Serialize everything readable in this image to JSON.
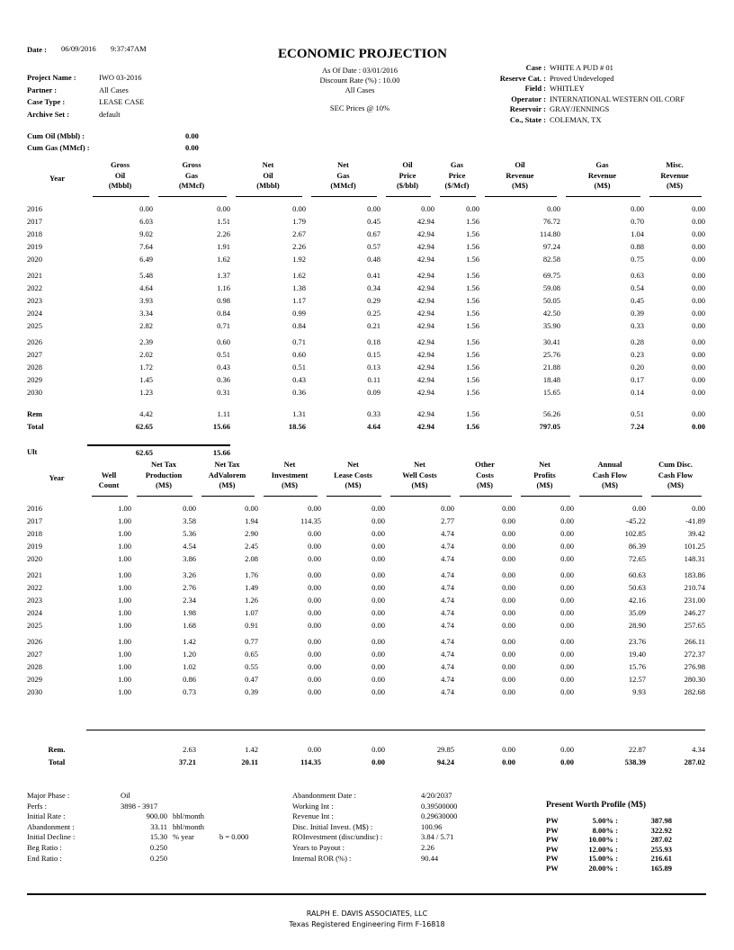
{
  "header": {
    "date_label": "Date :",
    "date": "06/09/2016",
    "time": "9:37:47AM",
    "title": "ECONOMIC PROJECTION",
    "project_name_label": "Project Name :",
    "project_name": "IWO 03-2016",
    "partner_label": "Partner :",
    "partner": "All Cases",
    "case_type_label": "Case Type :",
    "case_type": "LEASE CASE",
    "archive_set_label": "Archive Set :",
    "archive_set": "default",
    "as_of_date_label": "As Of Date :",
    "as_of_date": "03/01/2016",
    "discount_rate_label": "Discount Rate (%) :",
    "discount_rate": "10.00",
    "all_cases": "All Cases",
    "prices": "SEC Prices @ 10%",
    "case_label": "Case :",
    "case": "WHITE A PUD # 01",
    "reserve_cat_label": "Reserve Cat. :",
    "reserve_cat": "Proved Undeveloped",
    "field_label": "Field :",
    "field": "WHITLEY",
    "operator_label": "Operator :",
    "operator": "INTERNATIONAL WESTERN OIL CORF",
    "reservoir_label": "Reservoir :",
    "reservoir": "GRAY/JENNINGS",
    "co_state_label": "Co., State :",
    "co_state": "COLEMAN, TX",
    "cum_oil_label": "Cum Oil (Mbbl) :",
    "cum_oil": "0.00",
    "cum_gas_label": "Cum Gas (MMcf) :",
    "cum_gas": "0.00"
  },
  "table1": {
    "headers": [
      [
        "Year"
      ],
      [
        "Gross",
        "Oil",
        "(Mbbl)"
      ],
      [
        "Gross",
        "Gas",
        "(MMcf)"
      ],
      [
        "Net",
        "Oil",
        "(Mbbl)"
      ],
      [
        "Net",
        "Gas",
        "(MMcf)"
      ],
      [
        "Oil",
        "Price",
        "($/bbl)"
      ],
      [
        "Gas",
        "Price",
        "($/Mcf)"
      ],
      [
        "Oil",
        "Revenue",
        "(M$)"
      ],
      [
        "Gas",
        "Revenue",
        "(M$)"
      ],
      [
        "Misc.",
        "Revenue",
        "(M$)"
      ]
    ],
    "rows": [
      [
        "2016",
        "0.00",
        "0.00",
        "0.00",
        "0.00",
        "0.00",
        "0.00",
        "0.00",
        "0.00",
        "0.00"
      ],
      [
        "2017",
        "6.03",
        "1.51",
        "1.79",
        "0.45",
        "42.94",
        "1.56",
        "76.72",
        "0.70",
        "0.00"
      ],
      [
        "2018",
        "9.02",
        "2.26",
        "2.67",
        "0.67",
        "42.94",
        "1.56",
        "114.80",
        "1.04",
        "0.00"
      ],
      [
        "2019",
        "7.64",
        "1.91",
        "2.26",
        "0.57",
        "42.94",
        "1.56",
        "97.24",
        "0.88",
        "0.00"
      ],
      [
        "2020",
        "6.49",
        "1.62",
        "1.92",
        "0.48",
        "42.94",
        "1.56",
        "82.58",
        "0.75",
        "0.00"
      ],
      [
        "2021",
        "5.48",
        "1.37",
        "1.62",
        "0.41",
        "42.94",
        "1.56",
        "69.75",
        "0.63",
        "0.00"
      ],
      [
        "2022",
        "4.64",
        "1.16",
        "1.38",
        "0.34",
        "42.94",
        "1.56",
        "59.08",
        "0.54",
        "0.00"
      ],
      [
        "2023",
        "3.93",
        "0.98",
        "1.17",
        "0.29",
        "42.94",
        "1.56",
        "50.05",
        "0.45",
        "0.00"
      ],
      [
        "2024",
        "3.34",
        "0.84",
        "0.99",
        "0.25",
        "42.94",
        "1.56",
        "42.50",
        "0.39",
        "0.00"
      ],
      [
        "2025",
        "2.82",
        "0.71",
        "0.84",
        "0.21",
        "42.94",
        "1.56",
        "35.90",
        "0.33",
        "0.00"
      ],
      [
        "2026",
        "2.39",
        "0.60",
        "0.71",
        "0.18",
        "42.94",
        "1.56",
        "30.41",
        "0.28",
        "0.00"
      ],
      [
        "2027",
        "2.02",
        "0.51",
        "0.60",
        "0.15",
        "42.94",
        "1.56",
        "25.76",
        "0.23",
        "0.00"
      ],
      [
        "2028",
        "1.72",
        "0.43",
        "0.51",
        "0.13",
        "42.94",
        "1.56",
        "21.88",
        "0.20",
        "0.00"
      ],
      [
        "2029",
        "1.45",
        "0.36",
        "0.43",
        "0.11",
        "42.94",
        "1.56",
        "18.48",
        "0.17",
        "0.00"
      ],
      [
        "2030",
        "1.23",
        "0.31",
        "0.36",
        "0.09",
        "42.94",
        "1.56",
        "15.65",
        "0.14",
        "0.00"
      ]
    ],
    "rem": [
      "Rem",
      "4.42",
      "1.11",
      "1.31",
      "0.33",
      "42.94",
      "1.56",
      "56.26",
      "0.51",
      "0.00"
    ],
    "total": [
      "Total",
      "62.65",
      "15.66",
      "18.56",
      "4.64",
      "42.94",
      "1.56",
      "797.05",
      "7.24",
      "0.00"
    ],
    "ult": [
      "Ult",
      "62.65",
      "15.66"
    ]
  },
  "table2": {
    "headers": [
      [
        "Year"
      ],
      [
        "Well",
        "Count"
      ],
      [
        "Net Tax",
        "Production",
        "(M$)"
      ],
      [
        "Net Tax",
        "AdValorem",
        "(M$)"
      ],
      [
        "Net",
        "Investment",
        "(M$)"
      ],
      [
        "Net",
        "Lease Costs",
        "(M$)"
      ],
      [
        "Net",
        "Well Costs",
        "(M$)"
      ],
      [
        "Other",
        "Costs",
        "(M$)"
      ],
      [
        "Net",
        "Profits",
        "(M$)"
      ],
      [
        "Annual",
        "Cash Flow",
        "(M$)"
      ],
      [
        "Cum Disc.",
        "Cash Flow",
        "(M$)"
      ]
    ],
    "rows": [
      [
        "2016",
        "1.00",
        "0.00",
        "0.00",
        "0.00",
        "0.00",
        "0.00",
        "0.00",
        "0.00",
        "0.00",
        "0.00"
      ],
      [
        "2017",
        "1.00",
        "3.58",
        "1.94",
        "114.35",
        "0.00",
        "2.77",
        "0.00",
        "0.00",
        "-45.22",
        "-41.89"
      ],
      [
        "2018",
        "1.00",
        "5.36",
        "2.90",
        "0.00",
        "0.00",
        "4.74",
        "0.00",
        "0.00",
        "102.85",
        "39.42"
      ],
      [
        "2019",
        "1.00",
        "4.54",
        "2.45",
        "0.00",
        "0.00",
        "4.74",
        "0.00",
        "0.00",
        "86.39",
        "101.25"
      ],
      [
        "2020",
        "1.00",
        "3.86",
        "2.08",
        "0.00",
        "0.00",
        "4.74",
        "0.00",
        "0.00",
        "72.65",
        "148.31"
      ],
      [
        "2021",
        "1.00",
        "3.26",
        "1.76",
        "0.00",
        "0.00",
        "4.74",
        "0.00",
        "0.00",
        "60.63",
        "183.86"
      ],
      [
        "2022",
        "1.00",
        "2.76",
        "1.49",
        "0.00",
        "0.00",
        "4.74",
        "0.00",
        "0.00",
        "50.63",
        "210.74"
      ],
      [
        "2023",
        "1.00",
        "2.34",
        "1.26",
        "0.00",
        "0.00",
        "4.74",
        "0.00",
        "0.00",
        "42.16",
        "231.00"
      ],
      [
        "2024",
        "1.00",
        "1.98",
        "1.07",
        "0.00",
        "0.00",
        "4.74",
        "0.00",
        "0.00",
        "35.09",
        "246.27"
      ],
      [
        "2025",
        "1.00",
        "1.68",
        "0.91",
        "0.00",
        "0.00",
        "4.74",
        "0.00",
        "0.00",
        "28.90",
        "257.65"
      ],
      [
        "2026",
        "1.00",
        "1.42",
        "0.77",
        "0.00",
        "0.00",
        "4.74",
        "0.00",
        "0.00",
        "23.76",
        "266.11"
      ],
      [
        "2027",
        "1.00",
        "1.20",
        "0.65",
        "0.00",
        "0.00",
        "4.74",
        "0.00",
        "0.00",
        "19.40",
        "272.37"
      ],
      [
        "2028",
        "1.00",
        "1.02",
        "0.55",
        "0.00",
        "0.00",
        "4.74",
        "0.00",
        "0.00",
        "15.76",
        "276.98"
      ],
      [
        "2029",
        "1.00",
        "0.86",
        "0.47",
        "0.00",
        "0.00",
        "4.74",
        "0.00",
        "0.00",
        "12.57",
        "280.30"
      ],
      [
        "2030",
        "1.00",
        "0.73",
        "0.39",
        "0.00",
        "0.00",
        "4.74",
        "0.00",
        "0.00",
        "9.93",
        "282.68"
      ]
    ],
    "rem": [
      "Rem.",
      "",
      "2.63",
      "1.42",
      "0.00",
      "0.00",
      "29.85",
      "0.00",
      "0.00",
      "22.87",
      "4.34"
    ],
    "total": [
      "Total",
      "",
      "37.21",
      "20.11",
      "114.35",
      "0.00",
      "94.24",
      "0.00",
      "0.00",
      "538.39",
      "287.02"
    ]
  },
  "summary": {
    "left": [
      [
        "Major Phase :",
        "Oil",
        "",
        ""
      ],
      [
        "Perfs :",
        "3898 - 3917",
        "",
        ""
      ],
      [
        "Initial Rate :",
        "900.00",
        "bbl/month",
        ""
      ],
      [
        "Abandonment :",
        "33.11",
        "bbl/month",
        ""
      ],
      [
        "Initial Decline :",
        "15.30",
        "% year",
        "b = 0.000"
      ],
      [
        "Beg Ratio :",
        "0.250",
        "",
        ""
      ],
      [
        "End Ratio :",
        "0.250",
        "",
        ""
      ]
    ],
    "mid": [
      [
        "Abandonment Date :",
        "4/20/2037"
      ],
      [
        "Working Int :",
        "0.39500000"
      ],
      [
        "Revenue Int :",
        "0.29630000"
      ],
      [
        "Disc. Initial Invest. (M$) :",
        "100.96"
      ],
      [
        "ROInvestment (disc/undisc) :",
        "3.84  /  5.71"
      ],
      [
        "Years to Payout :",
        "2.26"
      ],
      [
        "Internal ROR (%) :",
        "90.44"
      ]
    ],
    "pw_title": "Present Worth Profile (M$)",
    "pw": [
      [
        "PW",
        "5.00% :",
        "387.98"
      ],
      [
        "PW",
        "8.00% :",
        "322.92"
      ],
      [
        "PW",
        "10.00% :",
        "287.02"
      ],
      [
        "PW",
        "12.00% :",
        "255.93"
      ],
      [
        "PW",
        "15.00% :",
        "216.61"
      ],
      [
        "PW",
        "20.00% :",
        "165.89"
      ]
    ]
  },
  "footer": {
    "company": "RALPH E. DAVIS ASSOCIATES, LLC",
    "registration": "Texas Registered Engineering Firm F-16818"
  }
}
